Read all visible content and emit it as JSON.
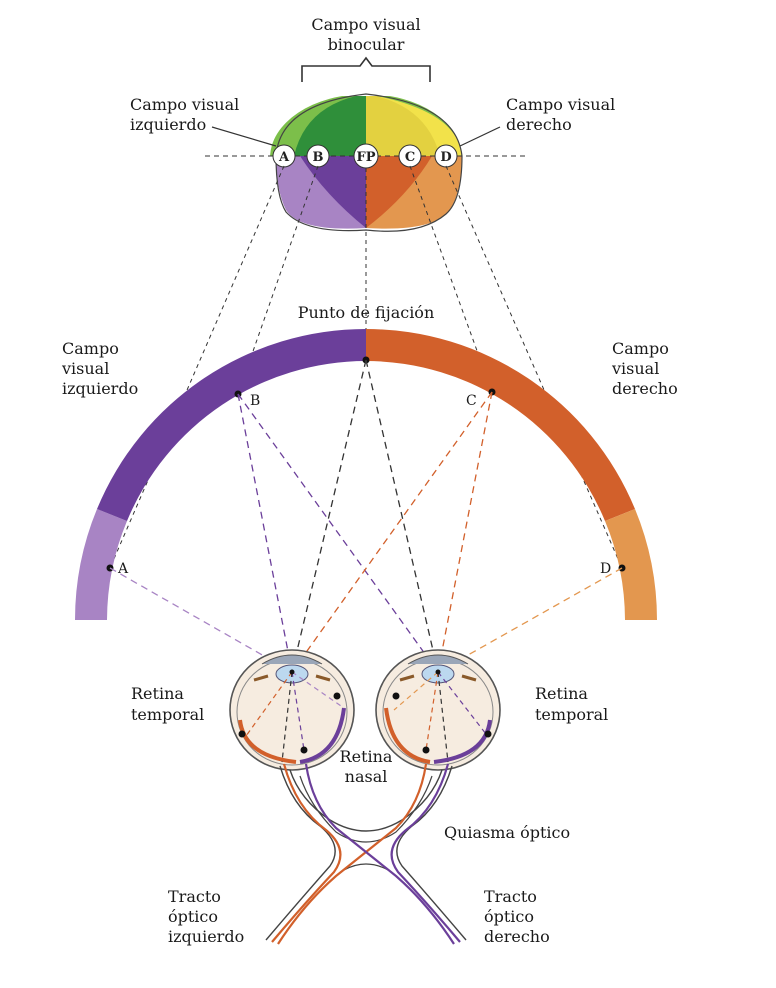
{
  "labels": {
    "binocular_1": "Campo visual",
    "binocular_2": "binocular",
    "left_field_top_1": "Campo visual",
    "left_field_top_2": "izquierdo",
    "right_field_top_1": "Campo visual",
    "right_field_top_2": "derecho",
    "fixation": "Punto de fijación",
    "left_field_1": "Campo",
    "left_field_2": "visual",
    "left_field_3": "izquierdo",
    "right_field_1": "Campo",
    "right_field_2": "visual",
    "right_field_3": "derecho",
    "retina_temporal_left_1": "Retina",
    "retina_temporal_left_2": "temporal",
    "retina_temporal_right_1": "Retina",
    "retina_temporal_right_2": "temporal",
    "retina_nasal_1": "Retina",
    "retina_nasal_2": "nasal",
    "chiasm": "Quiasma óptico",
    "tract_left_1": "Tracto",
    "tract_left_2": "óptico",
    "tract_left_3": "izquierdo",
    "tract_right_1": "Tracto",
    "tract_right_2": "óptico",
    "tract_right_3": "derecho"
  },
  "points": {
    "A": "A",
    "B": "B",
    "FP": "FP",
    "C": "C",
    "D": "D"
  },
  "colors": {
    "purple_dark": "#6b3f9a",
    "purple_light": "#a884c4",
    "orange_dark": "#d2602b",
    "orange_light": "#e3974f",
    "green_light": "#7cbf4a",
    "green_dark": "#2f8f3a",
    "yellow": "#f2e24a",
    "eye_fill": "#f6ece0",
    "lens": "#bcd8ef"
  }
}
